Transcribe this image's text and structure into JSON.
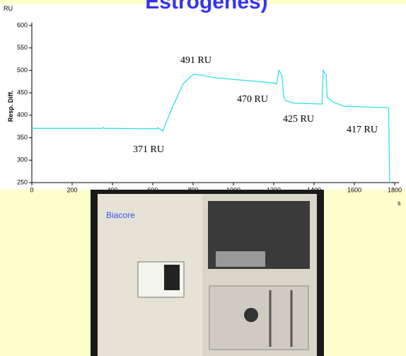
{
  "chart_data": {
    "type": "line",
    "title": "Estrogenes)",
    "y_label": "Resp. Diff.",
    "y_unit": "RU",
    "x_unit": "s",
    "xlim": [
      0,
      1800
    ],
    "ylim": [
      250,
      600
    ],
    "xticks": [
      0,
      200,
      400,
      600,
      800,
      1000,
      1200,
      1400,
      1600,
      1800
    ],
    "yticks": [
      250,
      300,
      350,
      400,
      450,
      500,
      550,
      600
    ],
    "grid": false,
    "series": [
      {
        "color": "#33e0e8",
        "x": [
          0,
          350,
          355,
          360,
          620,
          625,
          640,
          650,
          655,
          700,
          750,
          800,
          850,
          900,
          1000,
          1100,
          1200,
          1215,
          1225,
          1240,
          1250,
          1260,
          1300,
          1440,
          1445,
          1460,
          1465,
          1500,
          1550,
          1770,
          1775
        ],
        "values": [
          371,
          371,
          373,
          371,
          370,
          372,
          368,
          365,
          372,
          420,
          470,
          491,
          489,
          484,
          480,
          476,
          472,
          470,
          500,
          490,
          440,
          432,
          427,
          425,
          500,
          490,
          440,
          428,
          420,
          417,
          250
        ]
      }
    ],
    "annotations": [
      "371 RU",
      "491 RU",
      "470 RU",
      "425 RU",
      "417 RU"
    ]
  },
  "photo_label": "Biacore"
}
